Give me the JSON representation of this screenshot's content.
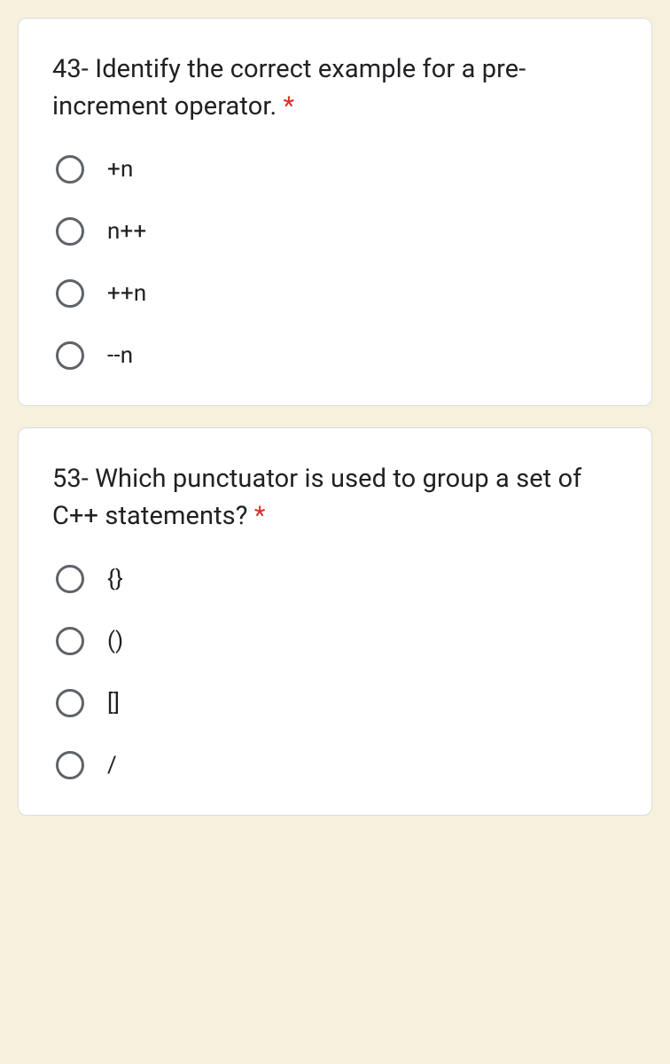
{
  "colors": {
    "page_bg": "#f5f1dd",
    "card_bg": "#ffffff",
    "card_border": "#dadce0",
    "text": "#202124",
    "radio_border": "#5f6368",
    "required": "#d93025"
  },
  "typography": {
    "title_fontsize": 29,
    "option_fontsize": 26,
    "font_family": "Roboto, Helvetica Neue, Arial, sans-serif"
  },
  "layout": {
    "card_radius": 10,
    "radio_diameter": 32,
    "option_gap": 38
  },
  "questions": [
    {
      "title": "43- Identify the correct example for a pre-increment operator.",
      "required": true,
      "options": [
        "+n",
        "n++",
        "++n",
        "--n"
      ]
    },
    {
      "title": "53- Which punctuator is used to group a set of C++ statements?",
      "required": true,
      "options": [
        "{}",
        "()",
        "[]",
        "/"
      ]
    }
  ],
  "required_marker": " *"
}
